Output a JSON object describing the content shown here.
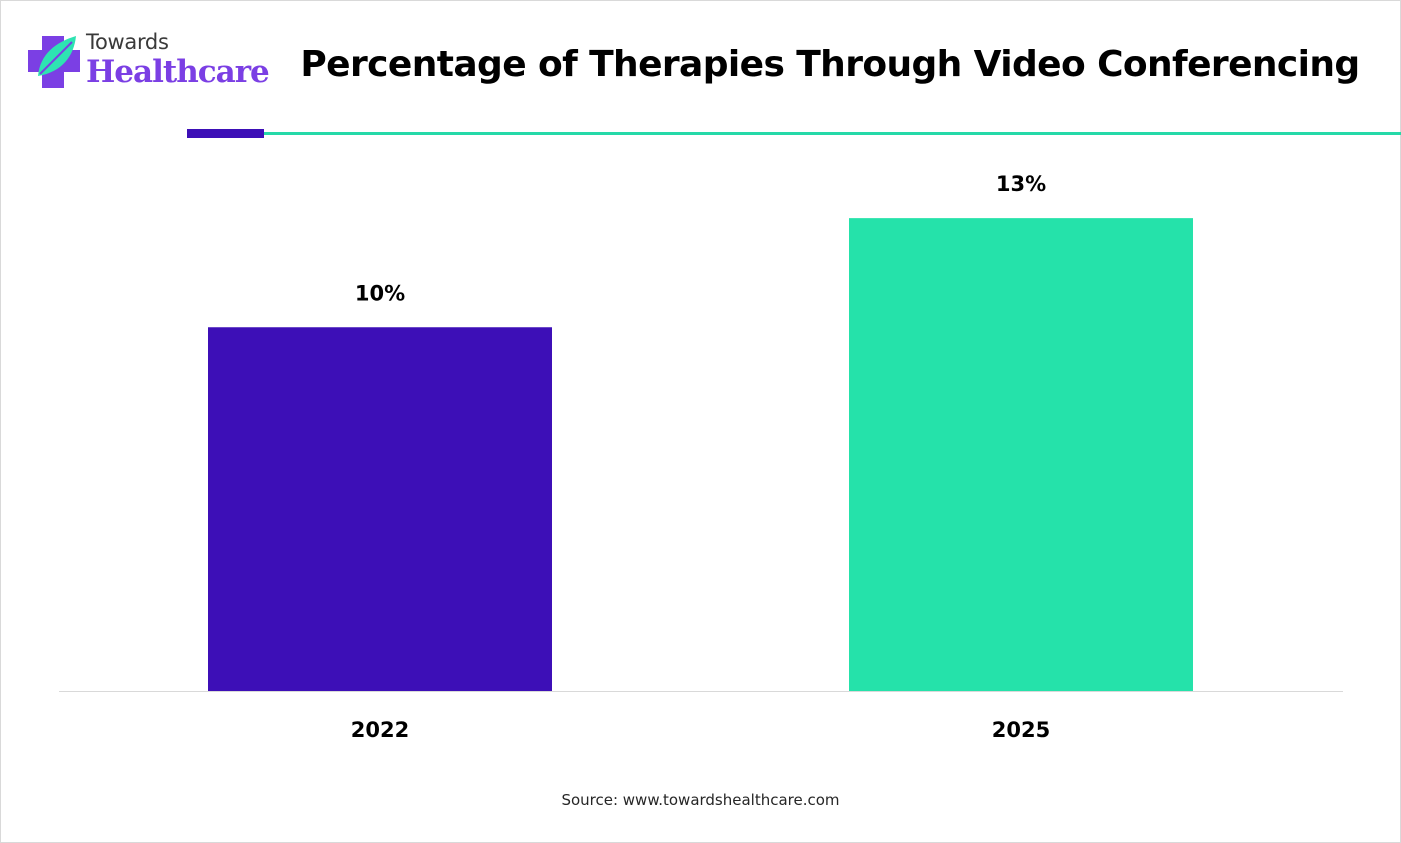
{
  "brand": {
    "line1": "Towards",
    "line2": "Healthcare",
    "colors": {
      "purple": "#7b3fe4",
      "teal": "#25d9a8"
    }
  },
  "source": "Source: www.towardshealthcare.com",
  "chart_data": {
    "type": "bar",
    "title": "Percentage of Therapies Through Video Conferencing",
    "xlabel": "",
    "ylabel": "",
    "categories": [
      "2022",
      "2025"
    ],
    "values": [
      10,
      13
    ],
    "data_labels": [
      "10%",
      "13%"
    ],
    "colors": [
      "#3d0fb7",
      "#25e2aa"
    ],
    "ylim": [
      0,
      16
    ],
    "grid": false,
    "legend": "none"
  }
}
